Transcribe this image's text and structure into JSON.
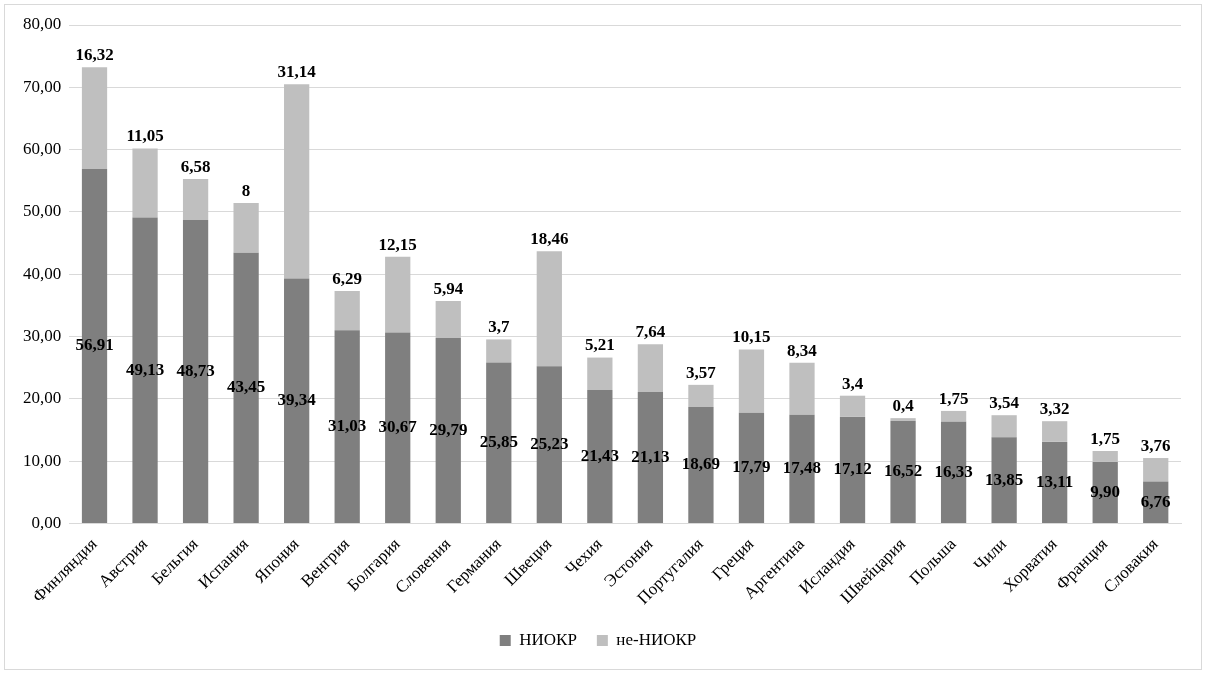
{
  "chart_data": {
    "type": "bar",
    "stacked": true,
    "categories": [
      "Финляндия",
      "Австрия",
      "Бельгия",
      "Испания",
      "Япония",
      "Венгрия",
      "Болгария",
      "Словения",
      "Германия",
      "Швеция",
      "Чехия",
      "Эстония",
      "Португалия",
      "Греция",
      "Аргентина",
      "Исландия",
      "Швейцария",
      "Польша",
      "Чили",
      "Хорватия",
      "Франция",
      "Словакия"
    ],
    "series": [
      {
        "name": "НИОКР",
        "color": "#7f7f7f",
        "values": [
          56.91,
          49.13,
          48.73,
          43.45,
          39.34,
          31.03,
          30.67,
          29.79,
          25.85,
          25.23,
          21.43,
          21.13,
          18.69,
          17.79,
          17.48,
          17.12,
          16.52,
          16.33,
          13.85,
          13.11,
          9.9,
          6.76
        ],
        "value_labels": [
          "56,91",
          "49,13",
          "48,73",
          "43,45",
          "39,34",
          "31,03",
          "30,67",
          "29,79",
          "25,85",
          "25,23",
          "21,43",
          "21,13",
          "18,69",
          "17,79",
          "17,48",
          "17,12",
          "16,52",
          "16,33",
          "13,85",
          "13,11",
          "9,90",
          "6,76"
        ]
      },
      {
        "name": "не-НИОКР",
        "color": "#bfbfbf",
        "values": [
          16.32,
          11.05,
          6.58,
          8,
          31.14,
          6.29,
          12.15,
          5.94,
          3.7,
          18.46,
          5.21,
          7.64,
          3.57,
          10.15,
          8.34,
          3.4,
          0.4,
          1.75,
          3.54,
          3.32,
          1.75,
          3.76
        ],
        "value_labels": [
          "16,32",
          "11,05",
          "6,58",
          "8",
          "31,14",
          "6,29",
          "12,15",
          "5,94",
          "3,7",
          "18,46",
          "5,21",
          "7,64",
          "3,57",
          "10,15",
          "8,34",
          "3,4",
          "0,4",
          "1,75",
          "3,54",
          "3,32",
          "1,75",
          "3,76"
        ]
      }
    ],
    "ylim": [
      0,
      80
    ],
    "yticks": [
      {
        "value": 0,
        "label": "0,00"
      },
      {
        "value": 10,
        "label": "10,00"
      },
      {
        "value": 20,
        "label": "20,00"
      },
      {
        "value": 30,
        "label": "30,00"
      },
      {
        "value": 40,
        "label": "40,00"
      },
      {
        "value": 50,
        "label": "50,00"
      },
      {
        "value": 60,
        "label": "60,00"
      },
      {
        "value": 70,
        "label": "70,00"
      },
      {
        "value": 80,
        "label": "80,00"
      }
    ],
    "grid": "y",
    "legend": "bottom"
  }
}
